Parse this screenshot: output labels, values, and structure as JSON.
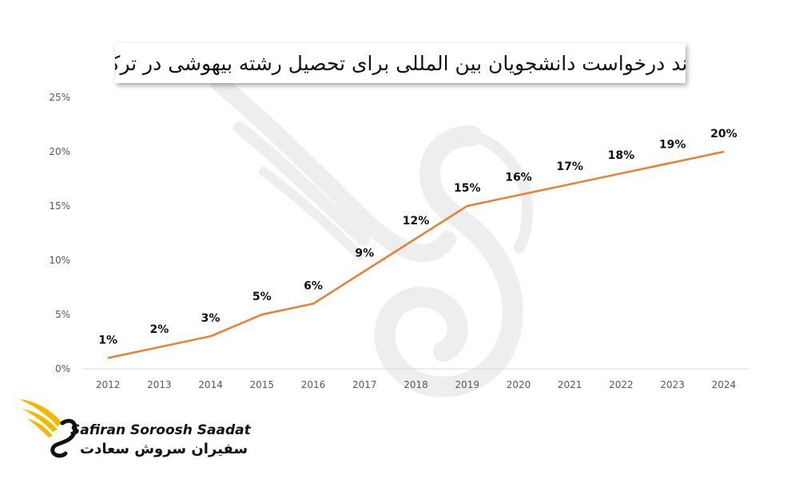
{
  "chart_data": {
    "type": "line",
    "title": "روند درخواست دانشجویان بین المللی برای تحصیل رشته بیهوشی در ترکیه",
    "categories": [
      "2012",
      "2013",
      "2014",
      "2015",
      "2016",
      "2017",
      "2018",
      "2019",
      "2020",
      "2021",
      "2022",
      "2023",
      "2024"
    ],
    "values": [
      1,
      2,
      3,
      5,
      6,
      9,
      12,
      15,
      16,
      17,
      18,
      19,
      20
    ],
    "data_labels": [
      "1%",
      "2%",
      "3%",
      "5%",
      "6%",
      "9%",
      "12%",
      "15%",
      "16%",
      "17%",
      "18%",
      "19%",
      "20%"
    ],
    "y_ticks": [
      0,
      5,
      10,
      15,
      20,
      25
    ],
    "y_tick_labels": [
      "0%",
      "5%",
      "10%",
      "15%",
      "20%",
      "25%"
    ],
    "ylim": [
      0,
      25
    ],
    "xlabel": "",
    "ylabel": "",
    "grid": false,
    "line_color": "#ED7D31",
    "axis_color": "#D9D9D9"
  },
  "logo": {
    "name_en": "Safiran Soroosh Saadat",
    "name_fa": "سفیران سروش سعادت",
    "icon": "phoenix-wing-icon",
    "accent_color": "#F5B800"
  },
  "watermark": {
    "icon": "phoenix-watermark-icon",
    "color": "#EEEEEE"
  }
}
